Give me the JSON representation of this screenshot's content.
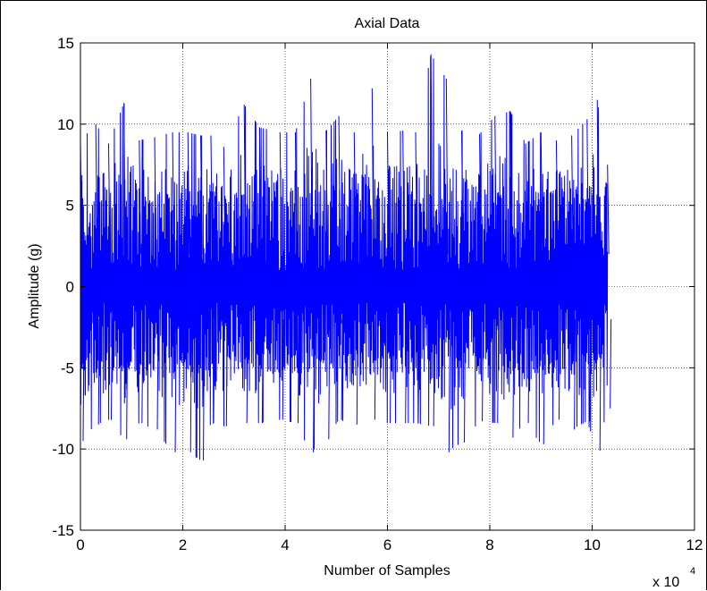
{
  "chart_data": {
    "type": "line",
    "title": "Axial Data",
    "xlabel": "Number of Samples",
    "ylabel": "Amplitude (g)",
    "x_multiplier": {
      "base": "x 10",
      "exponent": "4"
    },
    "xlim": [
      0,
      12
    ],
    "ylim": [
      -15,
      15
    ],
    "xticks": [
      "0",
      "2",
      "4",
      "6",
      "8",
      "10",
      "12"
    ],
    "yticks": [
      "15",
      "10",
      "5",
      "0",
      "-5",
      "-10",
      "-15"
    ],
    "grid": true,
    "series": [
      {
        "color": "#0000ff",
        "x_range": [
          0,
          10.3
        ],
        "signal_range": [
          -10.7,
          14.3
        ],
        "x": [
          0.0,
          0.3,
          0.55,
          0.85,
          1.15,
          1.45,
          1.8,
          2.1,
          2.35,
          2.55,
          2.8,
          3.2,
          3.5,
          3.9,
          4.2,
          4.5,
          4.8,
          5.05,
          5.35,
          5.7,
          6.0,
          6.3,
          6.55,
          6.85,
          7.15,
          7.45,
          7.8,
          8.1,
          8.4,
          8.7,
          9.0,
          9.3,
          9.6,
          9.9,
          10.1,
          10.3
        ],
        "peaks": [
          9.0,
          10.0,
          8.8,
          11.3,
          9.0,
          9.2,
          9.5,
          9.5,
          9.3,
          9.3,
          8.6,
          11.2,
          9.8,
          9.5,
          9.5,
          12.8,
          9.6,
          10.5,
          9.5,
          12.2,
          9.5,
          9.6,
          9.5,
          14.3,
          12.8,
          9.6,
          9.4,
          10.5,
          10.8,
          8.8,
          9.5,
          9.0,
          9.3,
          10.3,
          11.5,
          7.5
        ],
        "troughs": [
          -9.5,
          -8.5,
          -8.2,
          -9.4,
          -8.4,
          -8.8,
          -10.2,
          -10.2,
          -10.7,
          -8.4,
          -8.6,
          -8.4,
          -8.4,
          -8.2,
          -8.4,
          -10.2,
          -9.4,
          -8.2,
          -8.5,
          -8.2,
          -8.4,
          -8.4,
          -8.4,
          -8.6,
          -10.2,
          -9.6,
          -8.3,
          -8.4,
          -9.3,
          -8.4,
          -9.7,
          -8.2,
          -8.8,
          -8.3,
          -10.1,
          -7.5
        ]
      }
    ]
  }
}
